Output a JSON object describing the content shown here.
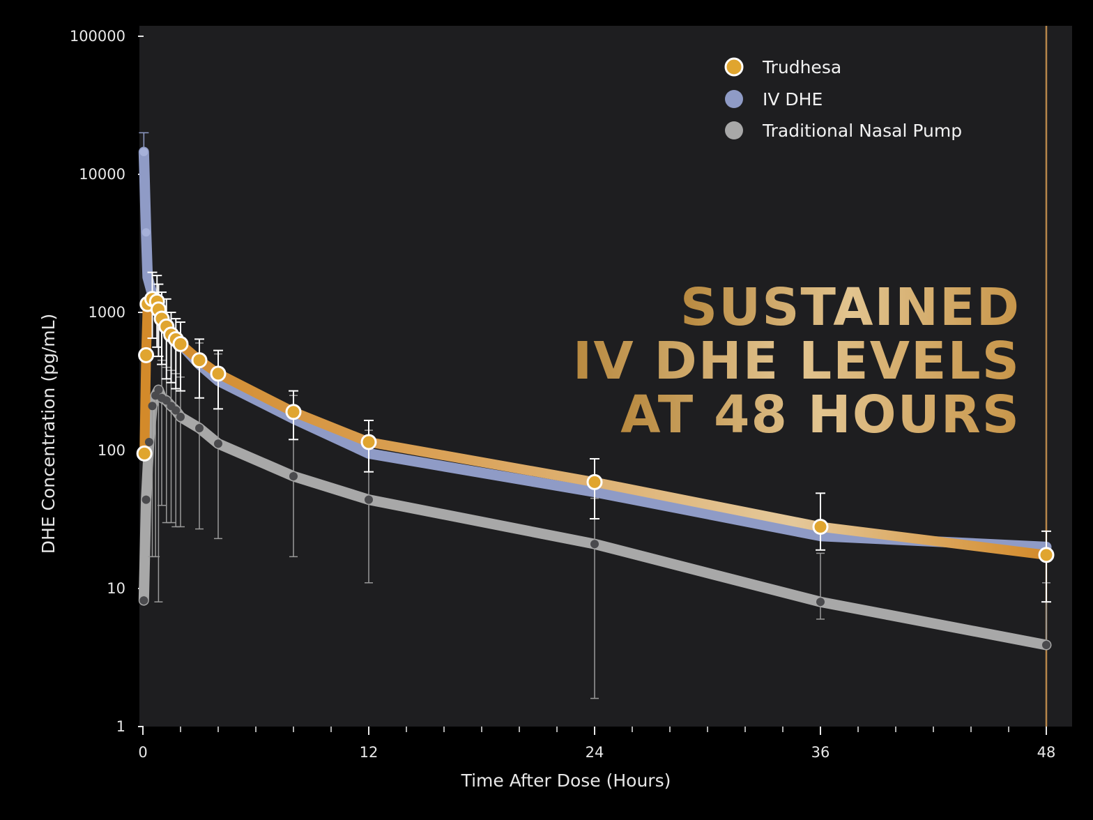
{
  "colors": {
    "background": "#000000",
    "plot_background": "#1e1e20",
    "trudhesa": "#d39a3a",
    "trudhesa_marker": "#e0a52f",
    "iv_dhe": "#8f9bc6",
    "nasal_pump": "#a8a8a8",
    "nasal_marker": "#4a4a4d",
    "error_bar": "#ffffff",
    "reference_line": "#b8874a",
    "headline_light": "#e2c48f",
    "headline_dark": "#b8893f"
  },
  "headline": {
    "line1": "SUSTAINED",
    "line2": "IV DHE LEVELS",
    "line3": "AT 48 HOURS"
  },
  "chart_data": {
    "type": "line",
    "y_scale": "log",
    "xlabel": "Time After Dose (Hours)",
    "ylabel": "DHE Concentration (pg/mL)",
    "xlim": [
      0,
      49
    ],
    "ylim": [
      1,
      100000
    ],
    "x_ticks": [
      0,
      12,
      24,
      36,
      48
    ],
    "x_tick_labels": [
      "0",
      "12",
      "24",
      "36",
      "48"
    ],
    "x_minor_ticks": [
      2,
      4,
      6,
      8,
      10,
      14,
      16,
      18,
      20,
      22,
      26,
      28,
      30,
      32,
      34,
      38,
      40,
      42,
      44,
      46
    ],
    "y_ticks": [
      1,
      10,
      100,
      1000,
      10000,
      100000
    ],
    "y_tick_labels": [
      "1",
      "10",
      "100",
      "1000",
      "10000",
      "100000"
    ],
    "reference_line_x": 48,
    "legend": {
      "placement": "top-right",
      "entries": [
        "Trudhesa",
        "IV DHE",
        "Traditional Nasal Pump"
      ]
    },
    "series": [
      {
        "name": "Trudhesa",
        "key": "trudhesa",
        "x": [
          0.08,
          0.17,
          0.25,
          0.5,
          0.75,
          0.83,
          1,
          1.25,
          1.5,
          1.75,
          2,
          3,
          4,
          8,
          12,
          24,
          36,
          48
        ],
        "y": [
          95,
          490,
          1150,
          1250,
          1200,
          1050,
          900,
          790,
          690,
          640,
          590,
          450,
          360,
          190,
          115,
          59,
          28,
          17.5
        ],
        "err_low": [
          null,
          null,
          null,
          650,
          560,
          480,
          420,
          330,
          310,
          280,
          270,
          240,
          200,
          120,
          70,
          32,
          19,
          8
        ],
        "err_high": [
          null,
          null,
          null,
          1950,
          1850,
          1600,
          1400,
          1250,
          1000,
          900,
          850,
          640,
          530,
          270,
          165,
          87,
          49,
          26
        ]
      },
      {
        "name": "IV DHE",
        "key": "iv_dhe",
        "x": [
          0.05,
          0.17,
          0.25,
          0.5,
          0.75,
          1,
          1.5,
          2,
          3,
          4,
          8,
          12,
          24,
          36,
          48
        ],
        "y": [
          14500,
          3800,
          1800,
          1350,
          1150,
          950,
          720,
          590,
          420,
          320,
          170,
          95,
          50,
          24,
          20
        ],
        "err_low": [
          null,
          null,
          null,
          null,
          null,
          null,
          null,
          null,
          null,
          null,
          null,
          null,
          null,
          null,
          null
        ],
        "err_high": [
          20000,
          null,
          null,
          null,
          null,
          null,
          null,
          null,
          null,
          null,
          null,
          null,
          null,
          null,
          null
        ]
      },
      {
        "name": "Traditional Nasal Pump",
        "key": "nasal_pump",
        "x": [
          0.05,
          0.17,
          0.33,
          0.5,
          0.67,
          0.83,
          1,
          1.25,
          1.5,
          1.75,
          2,
          3,
          4,
          8,
          12,
          24,
          36,
          48
        ],
        "y": [
          8.2,
          44,
          115,
          210,
          250,
          275,
          240,
          230,
          210,
          195,
          175,
          145,
          112,
          65,
          44,
          21,
          8,
          3.9
        ],
        "err_low": [
          null,
          null,
          null,
          17,
          17,
          8,
          40,
          30,
          30,
          28,
          28,
          27,
          23,
          17,
          11,
          1.6,
          6,
          8
        ],
        "err_high": [
          null,
          null,
          null,
          null,
          null,
          null,
          450,
          400,
          380,
          360,
          340,
          600,
          500,
          250,
          140,
          45,
          18,
          11
        ]
      }
    ]
  }
}
